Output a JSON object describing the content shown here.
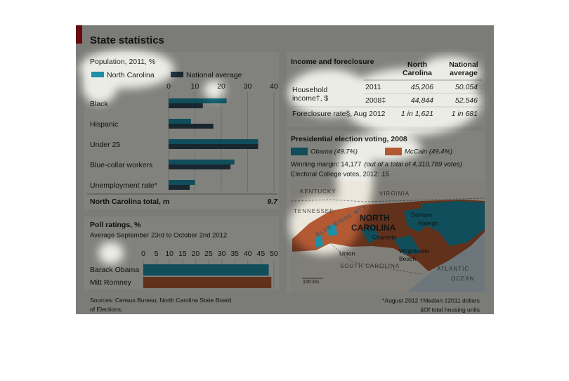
{
  "title": "State statistics",
  "chart_data": [
    {
      "type": "bar",
      "orientation": "horizontal",
      "title": "Population, 2011, %",
      "categories": [
        "Black",
        "Hispanic",
        "Under 25",
        "Blue-collar workers",
        "Unemployment rate*"
      ],
      "series": [
        {
          "name": "North Carolina",
          "color": "#1d8fa6",
          "values": [
            22,
            8.5,
            34,
            25,
            10
          ]
        },
        {
          "name": "National average",
          "color": "#2e4756",
          "values": [
            13,
            17,
            34,
            23.5,
            8
          ]
        }
      ],
      "xlim": [
        0,
        40
      ],
      "xticks": [
        0,
        10,
        20,
        30,
        40
      ],
      "grid": true,
      "total": {
        "label": "North Carolina total, m",
        "value": 9.7
      }
    },
    {
      "type": "bar",
      "orientation": "horizontal",
      "title": "Poll ratings, %",
      "subtitle": "Average September 23rd to October 2nd 2012",
      "categories": [
        "Barack Obama",
        "Mitt Romney"
      ],
      "values": [
        48,
        49
      ],
      "colors": [
        "#1d8fa6",
        "#b35a35"
      ],
      "xlim": [
        0,
        50
      ],
      "xticks": [
        0,
        5,
        10,
        15,
        20,
        25,
        30,
        35,
        40,
        45,
        50
      ],
      "grid": true
    }
  ],
  "income_table": {
    "title": "Income and foreclosure",
    "columns": [
      "North Carolina",
      "National average"
    ],
    "rows": [
      {
        "label": "Household income†, $",
        "year": "2011",
        "values": [
          "45,206",
          "50,054"
        ]
      },
      {
        "year": "2008‡",
        "values": [
          "44,844",
          "52,546"
        ]
      },
      {
        "label": "Foreclosure rate§, Aug 2012",
        "values": [
          "1 in 1,621",
          "1 in 681"
        ]
      }
    ]
  },
  "election": {
    "title": "Presidential election voting, 2008",
    "legend": [
      {
        "name": "Obama (49.7%)",
        "color": "#1d8fa6"
      },
      {
        "name": "McCain (49.4%)",
        "color": "#b35a35"
      }
    ],
    "margin_label": "Winning margin: 14,177",
    "margin_note": "(out of a total of 4,310,789 votes)",
    "electoral_label": "Electoral College votes, 2012:",
    "electoral_value": "15",
    "map_labels": [
      "KENTUCKY",
      "VIRGINIA",
      "TENNESSEE",
      "BLUE RIDGE MTS.",
      "NORTH",
      "CAROLINA",
      "Durham",
      "Raleigh",
      "Charlotte",
      "Union",
      "Wrightsville Beach",
      "SOUTH CAROLINA",
      "ATLANTIC OCEAN",
      "100 km"
    ]
  },
  "sources": "Sources: Census Bureau; North Carolina State Board of Elections; RealClearPolitics.com; RealtyTrac",
  "footnotes": [
    "*August 2012 †Median ‡2011 dollars",
    "§Of total housing units"
  ]
}
